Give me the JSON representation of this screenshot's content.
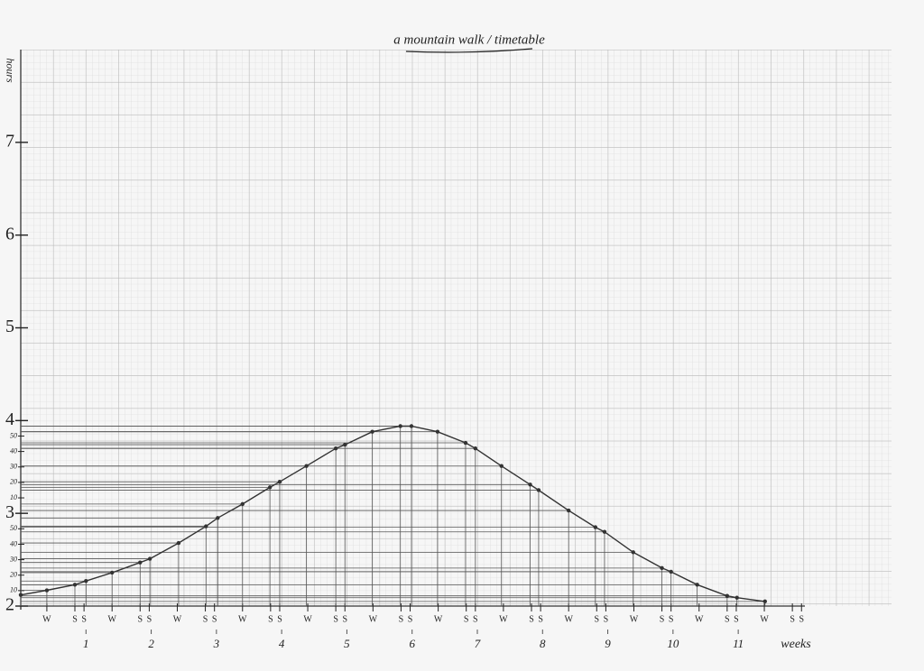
{
  "chart_data": {
    "type": "line",
    "title": "a mountain walk / timetable",
    "y_label": "hours",
    "x_label": "weeks",
    "x": [
      0,
      0.4,
      0.83,
      1.0,
      1.4,
      1.83,
      1.98,
      2.42,
      2.84,
      3.02,
      3.4,
      3.82,
      3.97,
      4.38,
      4.83,
      4.97,
      5.39,
      5.82,
      5.99,
      6.39,
      6.82,
      6.97,
      7.37,
      7.81,
      7.94,
      8.4,
      8.81,
      8.95,
      9.39,
      9.83,
      9.97,
      10.37,
      10.83,
      10.98,
      11.41
    ],
    "series": [
      {
        "color": "#333333",
        "values": [
          2.12,
          2.17,
          2.23,
          2.27,
          2.36,
          2.47,
          2.51,
          2.68,
          2.86,
          2.95,
          3.1,
          3.28,
          3.34,
          3.51,
          3.7,
          3.74,
          3.88,
          3.94,
          3.94,
          3.88,
          3.76,
          3.7,
          3.51,
          3.31,
          3.25,
          3.03,
          2.85,
          2.8,
          2.58,
          2.41,
          2.37,
          2.23,
          2.11,
          2.09,
          2.05
        ]
      }
    ],
    "xlim": [
      0,
      13.35
    ],
    "ylim": [
      2,
      8
    ],
    "xticks": [
      1,
      2,
      3,
      4,
      5,
      6,
      7,
      8,
      9,
      10,
      11
    ],
    "yticks": [
      2,
      3,
      4,
      5,
      6,
      7
    ],
    "yminor_ticks": [
      {
        "value": 2.1667,
        "label": "10"
      },
      {
        "value": 2.3333,
        "label": "20"
      },
      {
        "value": 2.5,
        "label": "30"
      },
      {
        "value": 2.6667,
        "label": "40"
      },
      {
        "value": 2.8333,
        "label": "50"
      },
      {
        "value": 3.1667,
        "label": "10"
      },
      {
        "value": 3.3333,
        "label": "20"
      },
      {
        "value": 3.5,
        "label": "30"
      },
      {
        "value": 3.6667,
        "label": "40"
      },
      {
        "value": 3.8333,
        "label": "50"
      }
    ],
    "day_labels": [
      {
        "value": 0.4,
        "label": "W"
      },
      {
        "value": 0.83,
        "label": "S"
      },
      {
        "value": 0.97,
        "label": "S"
      },
      {
        "value": 1.4,
        "label": "W"
      },
      {
        "value": 1.83,
        "label": "S"
      },
      {
        "value": 1.97,
        "label": "S"
      },
      {
        "value": 2.4,
        "label": "W"
      },
      {
        "value": 2.83,
        "label": "S"
      },
      {
        "value": 2.97,
        "label": "S"
      },
      {
        "value": 3.4,
        "label": "W"
      },
      {
        "value": 3.83,
        "label": "S"
      },
      {
        "value": 3.97,
        "label": "S"
      },
      {
        "value": 4.4,
        "label": "W"
      },
      {
        "value": 4.83,
        "label": "S"
      },
      {
        "value": 4.97,
        "label": "S"
      },
      {
        "value": 5.4,
        "label": "W"
      },
      {
        "value": 5.83,
        "label": "S"
      },
      {
        "value": 5.97,
        "label": "S"
      },
      {
        "value": 6.4,
        "label": "W"
      },
      {
        "value": 6.83,
        "label": "S"
      },
      {
        "value": 6.97,
        "label": "S"
      },
      {
        "value": 7.4,
        "label": "W"
      },
      {
        "value": 7.83,
        "label": "S"
      },
      {
        "value": 7.97,
        "label": "S"
      },
      {
        "value": 8.4,
        "label": "W"
      },
      {
        "value": 8.83,
        "label": "S"
      },
      {
        "value": 8.97,
        "label": "S"
      },
      {
        "value": 9.4,
        "label": "W"
      },
      {
        "value": 9.83,
        "label": "S"
      },
      {
        "value": 9.97,
        "label": "S"
      },
      {
        "value": 10.4,
        "label": "W"
      },
      {
        "value": 10.83,
        "label": "S"
      },
      {
        "value": 10.97,
        "label": "S"
      },
      {
        "value": 11.4,
        "label": "W"
      },
      {
        "value": 11.83,
        "label": "S"
      },
      {
        "value": 11.97,
        "label": "S"
      }
    ],
    "grid": true
  }
}
